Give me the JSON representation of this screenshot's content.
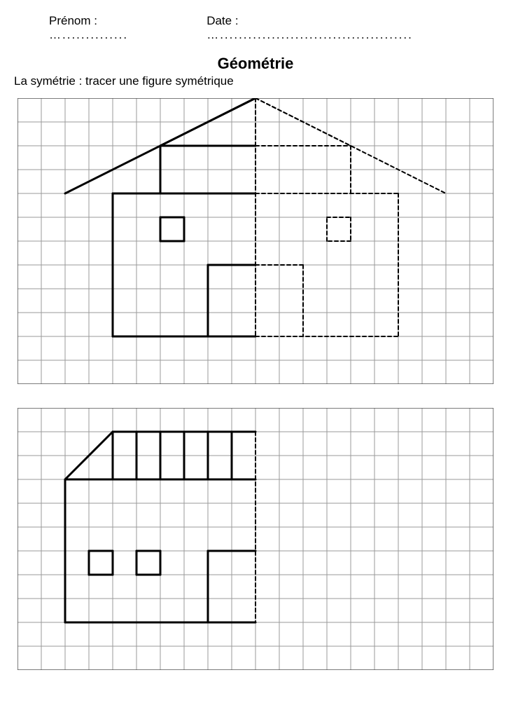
{
  "header": {
    "name_label": "Prénom :",
    "name_dots": "…..............",
    "date_label": "Date :",
    "date_dots": "…........................................."
  },
  "title": "Géométrie",
  "subtitle": "La symétrie : tracer une figure symétrique",
  "style": {
    "grid_stroke": "#9a9a9a",
    "grid_stroke_w": 1,
    "border_stroke": "#505050",
    "border_stroke_w": 1.5,
    "solid_stroke": "#000000",
    "solid_stroke_w": 3,
    "dash_stroke": "#000000",
    "dash_stroke_w": 2,
    "dash_pattern": "5,4",
    "cell": 34
  },
  "grid1": {
    "cols": 20,
    "rows": 12,
    "solid_lines": [
      [
        10,
        0,
        2,
        4
      ],
      [
        10,
        0,
        6,
        2
      ],
      [
        6,
        2,
        6,
        4
      ],
      [
        6,
        2,
        10,
        2
      ],
      [
        6,
        4,
        10,
        4
      ],
      [
        4,
        4,
        10,
        4
      ],
      [
        4,
        4,
        4,
        10
      ],
      [
        4,
        10,
        10,
        10
      ],
      [
        6,
        5,
        7,
        5
      ],
      [
        7,
        5,
        7,
        6
      ],
      [
        7,
        6,
        6,
        6
      ],
      [
        6,
        6,
        6,
        5
      ],
      [
        8,
        7,
        10,
        7
      ],
      [
        8,
        7,
        8,
        10
      ]
    ],
    "dashed_lines": [
      [
        10,
        0,
        10,
        10
      ],
      [
        10,
        0,
        18,
        4
      ],
      [
        10,
        0,
        14,
        2
      ],
      [
        14,
        2,
        14,
        4
      ],
      [
        10,
        2,
        14,
        2
      ],
      [
        10,
        4,
        16,
        4
      ],
      [
        16,
        4,
        16,
        10
      ],
      [
        10,
        10,
        16,
        10
      ],
      [
        13,
        5,
        14,
        5
      ],
      [
        14,
        5,
        14,
        6
      ],
      [
        14,
        6,
        13,
        6
      ],
      [
        13,
        6,
        13,
        5
      ],
      [
        10,
        7,
        12,
        7
      ],
      [
        12,
        7,
        12,
        10
      ]
    ]
  },
  "grid2": {
    "cols": 20,
    "rows": 11,
    "solid_lines": [
      [
        2,
        3,
        4,
        1
      ],
      [
        4,
        1,
        10,
        1
      ],
      [
        4,
        1,
        4,
        3
      ],
      [
        2,
        3,
        10,
        3
      ],
      [
        2,
        3,
        2,
        9
      ],
      [
        2,
        9,
        10,
        9
      ],
      [
        5,
        1,
        5,
        3
      ],
      [
        6,
        1,
        6,
        3
      ],
      [
        7,
        1,
        7,
        3
      ],
      [
        8,
        1,
        8,
        3
      ],
      [
        9,
        1,
        9,
        3
      ],
      [
        3,
        6,
        4,
        6
      ],
      [
        4,
        6,
        4,
        7
      ],
      [
        4,
        7,
        3,
        7
      ],
      [
        3,
        7,
        3,
        6
      ],
      [
        5,
        6,
        6,
        6
      ],
      [
        6,
        6,
        6,
        7
      ],
      [
        6,
        7,
        5,
        7
      ],
      [
        5,
        7,
        5,
        6
      ],
      [
        8,
        6,
        10,
        6
      ],
      [
        8,
        6,
        8,
        9
      ]
    ],
    "dashed_lines": [
      [
        10,
        1,
        10,
        9
      ]
    ]
  }
}
